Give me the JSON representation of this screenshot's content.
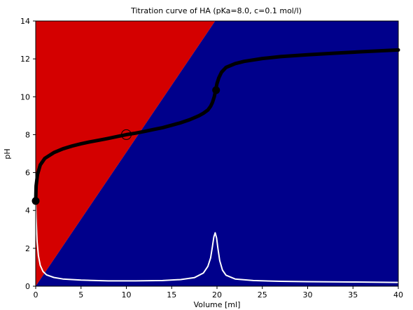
{
  "chart_data": {
    "type": "line",
    "title": "Titration curve of HA (pKa=8.0, c=0.1 mol/l)",
    "xlabel": "Volume [ml]",
    "ylabel": "pH",
    "xlim": [
      0,
      40
    ],
    "ylim": [
      0,
      14
    ],
    "xticks": [
      "0",
      "5",
      "10",
      "15",
      "20",
      "25",
      "30",
      "35",
      "40"
    ],
    "yticks": [
      "0",
      "2",
      "4",
      "6",
      "8",
      "10",
      "12",
      "14"
    ],
    "grid": false,
    "legend": "none",
    "background_regions": [
      {
        "color": "#d40000",
        "polygon": [
          [
            0,
            0
          ],
          [
            0,
            14
          ],
          [
            19.8,
            14
          ]
        ]
      },
      {
        "color": "#00008b",
        "polygon": [
          [
            0,
            0
          ],
          [
            19.8,
            14
          ],
          [
            40,
            14
          ],
          [
            40,
            0
          ]
        ]
      }
    ],
    "series": [
      {
        "color": "#000000",
        "line_width": "thick",
        "x": [
          0,
          0.05,
          0.2,
          0.5,
          1,
          2,
          3,
          4,
          5,
          6,
          7,
          8,
          9,
          10,
          11,
          12,
          13,
          14,
          15,
          16,
          17,
          18,
          18.5,
          19,
          19.3,
          19.5,
          19.7,
          19.85,
          20,
          20.2,
          20.5,
          21,
          22,
          23,
          25,
          27,
          30,
          33,
          36,
          40
        ],
        "y": [
          4.5,
          5.3,
          5.9,
          6.4,
          6.75,
          7.05,
          7.25,
          7.4,
          7.52,
          7.62,
          7.71,
          7.8,
          7.9,
          8.0,
          8.08,
          8.17,
          8.27,
          8.37,
          8.5,
          8.63,
          8.79,
          9.0,
          9.13,
          9.3,
          9.5,
          9.7,
          10.0,
          10.35,
          10.7,
          11.0,
          11.3,
          11.55,
          11.75,
          11.87,
          12.02,
          12.12,
          12.22,
          12.3,
          12.38,
          12.47
        ]
      },
      {
        "color": "#ffffff",
        "line_width": "thin",
        "x": [
          0,
          0.05,
          0.15,
          0.3,
          0.5,
          0.8,
          1.2,
          2,
          3,
          5,
          8,
          11,
          14,
          16,
          17.5,
          18.5,
          19,
          19.3,
          19.5,
          19.65,
          19.8,
          19.95,
          20.1,
          20.3,
          20.6,
          21,
          22,
          24,
          27,
          30,
          35,
          40
        ],
        "y": [
          4.4,
          3.6,
          2.4,
          1.6,
          1.1,
          0.78,
          0.6,
          0.46,
          0.38,
          0.32,
          0.28,
          0.28,
          0.3,
          0.35,
          0.45,
          0.7,
          1.05,
          1.5,
          2.1,
          2.6,
          2.82,
          2.55,
          2.0,
          1.35,
          0.85,
          0.58,
          0.38,
          0.3,
          0.26,
          0.24,
          0.22,
          0.2
        ]
      }
    ],
    "markers": [
      {
        "x": 0,
        "y": 4.5,
        "style": "filled",
        "color": "#000000"
      },
      {
        "x": 10,
        "y": 8.0,
        "style": "open",
        "color": "#000000"
      },
      {
        "x": 19.9,
        "y": 10.35,
        "style": "filled",
        "color": "#000000"
      }
    ]
  }
}
